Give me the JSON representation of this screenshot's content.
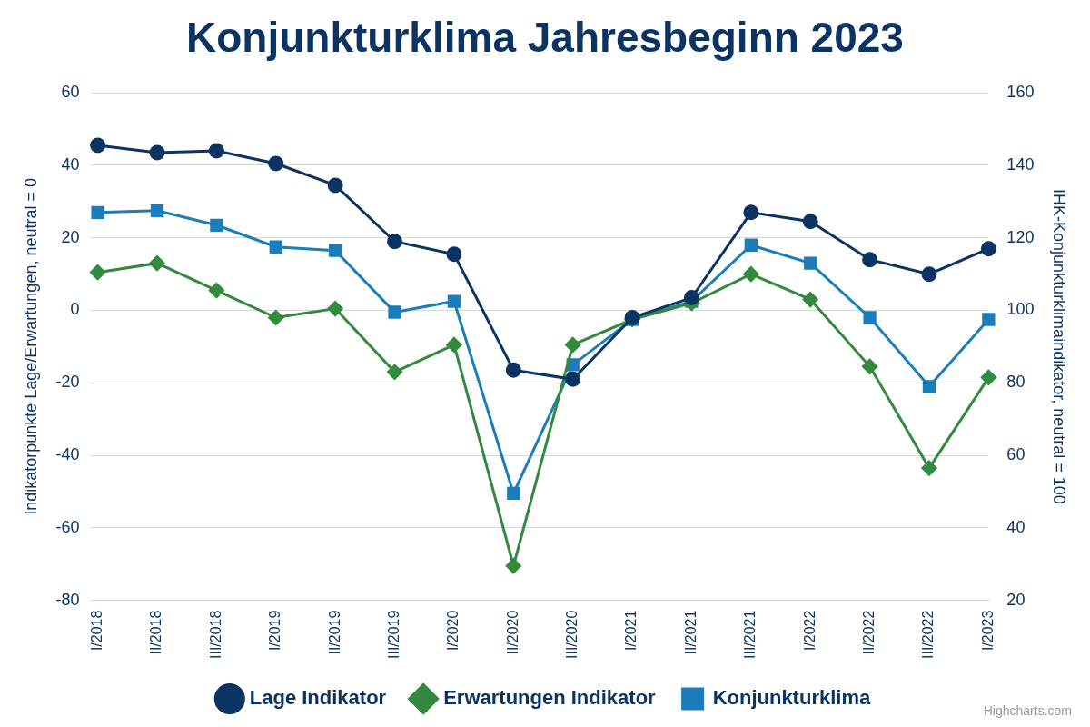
{
  "chart_data": {
    "type": "line",
    "title": "Konjunkturklima Jahresbeginn 2023",
    "y_label": "Indikatorpunkte Lage/Erwartungen, neutral = 0",
    "y2_label": "IHK-Konjunkturklimaindikator, neutral = 100",
    "annotations": [
      "Highcharts.com"
    ],
    "categories": [
      "I/2018",
      "II/2018",
      "III/2018",
      "I/2019",
      "II/2019",
      "III/2019",
      "I/2020",
      "II/2020",
      "III/2020",
      "I/2021",
      "II/2021",
      "III/2021",
      "I/2022",
      "II/2022",
      "III/2022",
      "I/2023"
    ],
    "series": [
      {
        "name": "Lage Indikator",
        "color": "#0b3463",
        "marker": "circle",
        "values": [
          45.5,
          43.5,
          44,
          40.5,
          34.5,
          19,
          15.5,
          -16.5,
          -19,
          -2,
          3.5,
          27,
          24.5,
          14,
          10,
          17
        ]
      },
      {
        "name": "Erwartungen Indikator",
        "color": "#338a3e",
        "marker": "diamond",
        "values": [
          10.5,
          13,
          5.5,
          -2,
          0.5,
          -17,
          -9.5,
          -70.5,
          -9.5,
          -2.5,
          2,
          10,
          3,
          -15.5,
          -43.5,
          -18.5
        ]
      },
      {
        "name": "Konjunkturklima",
        "color": "#1b7db9",
        "marker": "square",
        "axis": "y2",
        "values": [
          127,
          127.5,
          123.5,
          117.5,
          116.5,
          99.5,
          102.5,
          49.5,
          85,
          97.5,
          102.5,
          118,
          113,
          98,
          79,
          97.5
        ]
      }
    ],
    "ylim": [
      -80,
      60
    ],
    "yticks": [
      -80,
      -60,
      -40,
      -20,
      0,
      20,
      40,
      60
    ],
    "y2lim": [
      20,
      160
    ],
    "y2ticks": [
      20,
      40,
      60,
      80,
      100,
      120,
      140,
      160
    ],
    "grid": true,
    "legend": "bottom"
  }
}
